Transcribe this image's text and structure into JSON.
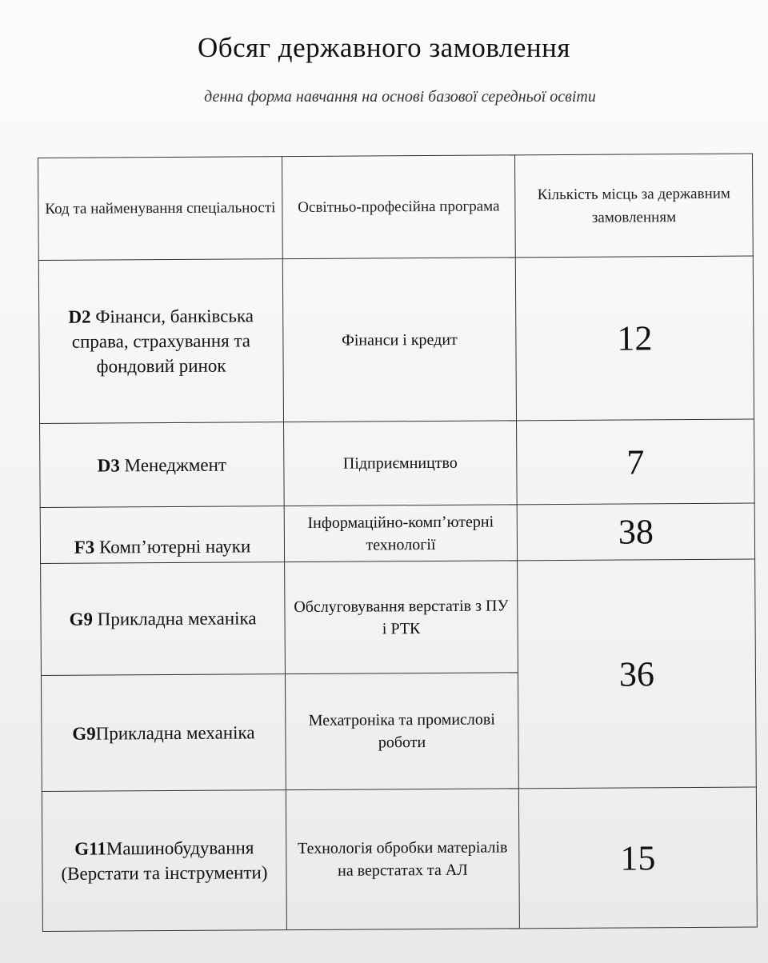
{
  "title": "Обсяг державного замовлення",
  "subtitle": "денна форма навчання на основі базової середньої освіти",
  "table": {
    "headers": [
      "Код та найменування спеціальності",
      "Освітньо-професійна програма",
      "Кількість місць за державним замовленням"
    ],
    "rows": [
      {
        "code": "D2",
        "name": " Фінанси, банківська справа, страхування та фондовий ринок",
        "program": "Фінанси і кредит",
        "places": "12"
      },
      {
        "code": "D3",
        "name": " Менеджмент",
        "program": "Підприємництво",
        "places": "7"
      },
      {
        "code": "F3",
        "name": " Комп’ютерні науки",
        "program": "Інформаційно-комп’ютерні технології",
        "places": "38"
      },
      {
        "code": "G9",
        "name": " Прикладна механіка",
        "program": "Обслуговування верстатів з ПУ і РТК",
        "places": "36"
      },
      {
        "code": "G9",
        "name": "Прикладна механіка",
        "program": "Мехатроніка та промислові роботи"
      },
      {
        "code": "G11",
        "name": "Машинобудування (Верстати та інструменти)",
        "program": "Технологія обробки матеріалів на верстатах та АЛ",
        "places": "15"
      }
    ]
  }
}
